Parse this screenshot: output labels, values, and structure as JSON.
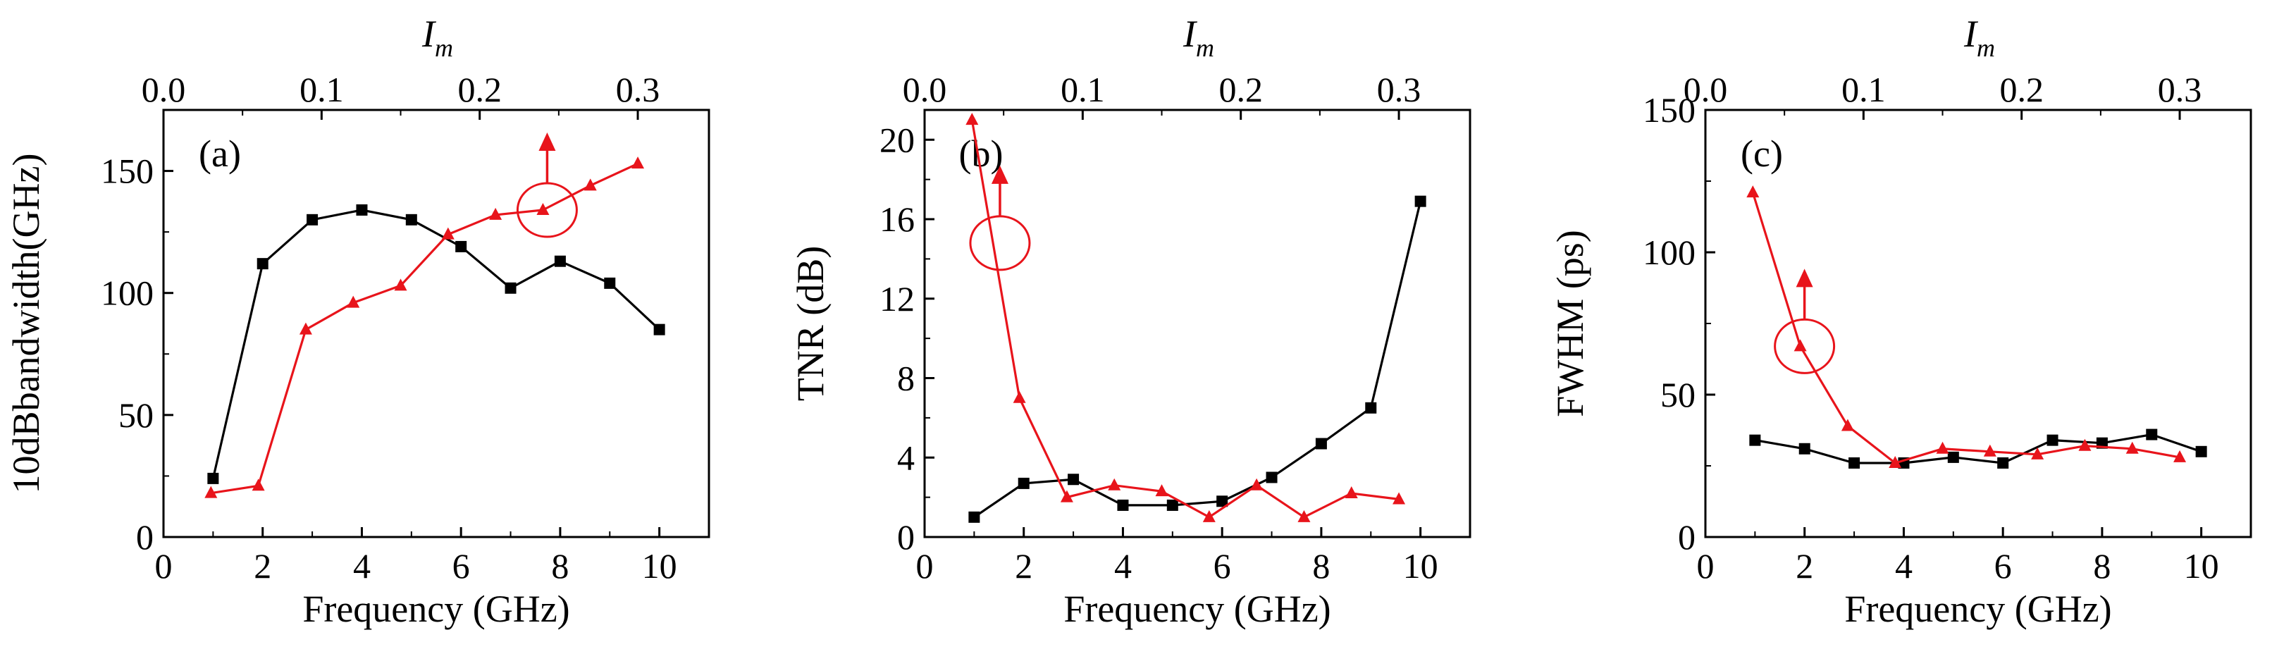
{
  "chart_data": [
    {
      "type": "line",
      "panel_label": "(a)",
      "xlabel": "Frequency (GHz)",
      "ylabel": "10dBbandwidth(GHz)",
      "top_axis_label": {
        "main": "I",
        "sub": "m"
      },
      "xlim": [
        0,
        11
      ],
      "ylim": [
        0,
        175
      ],
      "top_xlim": [
        0,
        0.345
      ],
      "x_ticks": [
        "0",
        "2",
        "4",
        "6",
        "8",
        "10"
      ],
      "y_ticks": [
        "0",
        "50",
        "100",
        "150"
      ],
      "top_ticks": [
        "0.0",
        "0.1",
        "0.2",
        "0.3"
      ],
      "series": [
        {
          "name": "frequency",
          "axis": "bottom",
          "marker": "square",
          "color": "#000000",
          "x": [
            1,
            2,
            3,
            4,
            5,
            6,
            7,
            8,
            9,
            10
          ],
          "y": [
            24,
            112,
            130,
            134,
            130,
            119,
            102,
            113,
            104,
            85
          ]
        },
        {
          "name": "Im",
          "axis": "top",
          "marker": "triangle",
          "color": "#e8141b",
          "x": [
            0.03,
            0.06,
            0.09,
            0.12,
            0.15,
            0.18,
            0.21,
            0.24,
            0.27,
            0.3
          ],
          "y": [
            18,
            21,
            85,
            96,
            103,
            124,
            132,
            134,
            144,
            153
          ]
        }
      ],
      "annotation": {
        "type": "circle-arrow",
        "points_to": "top",
        "series": "Im",
        "x": 0.24,
        "y": 134
      }
    },
    {
      "type": "line",
      "panel_label": "(b)",
      "xlabel": "Frequency (GHz)",
      "ylabel": "TNR (dB)",
      "top_axis_label": {
        "main": "I",
        "sub": "m"
      },
      "xlim": [
        0,
        11
      ],
      "ylim": [
        0,
        21.5
      ],
      "top_xlim": [
        0,
        0.345
      ],
      "x_ticks": [
        "0",
        "2",
        "4",
        "6",
        "8",
        "10"
      ],
      "y_ticks": [
        "0",
        "4",
        "8",
        "12",
        "16",
        "20"
      ],
      "top_ticks": [
        "0.0",
        "0.1",
        "0.2",
        "0.3"
      ],
      "series": [
        {
          "name": "frequency",
          "axis": "bottom",
          "marker": "square",
          "color": "#000000",
          "x": [
            1,
            2,
            3,
            4,
            5,
            6,
            7,
            8,
            9,
            10
          ],
          "y": [
            1.0,
            2.7,
            2.9,
            1.6,
            1.6,
            1.8,
            3.0,
            4.7,
            6.5,
            16.9
          ]
        },
        {
          "name": "Im",
          "axis": "top",
          "marker": "triangle",
          "color": "#e8141b",
          "x": [
            0.03,
            0.06,
            0.09,
            0.12,
            0.15,
            0.18,
            0.21,
            0.24,
            0.27,
            0.3
          ],
          "y": [
            21.0,
            7.0,
            2.0,
            2.6,
            2.3,
            1.0,
            2.6,
            1.0,
            2.2,
            1.9
          ]
        }
      ],
      "annotation": {
        "type": "circle-arrow",
        "points_to": "top",
        "series": "Im",
        "x": 0.045,
        "y": 14.8
      }
    },
    {
      "type": "line",
      "panel_label": "(c)",
      "xlabel": "Frequency (GHz)",
      "ylabel": "FWHM (ps)",
      "top_axis_label": {
        "main": "I",
        "sub": "m"
      },
      "xlim": [
        0,
        11
      ],
      "ylim": [
        0,
        150
      ],
      "top_xlim": [
        0,
        0.345
      ],
      "x_ticks": [
        "0",
        "2",
        "4",
        "6",
        "8",
        "10"
      ],
      "y_ticks": [
        "0",
        "50",
        "100",
        "150"
      ],
      "top_ticks": [
        "0.0",
        "0.1",
        "0.2",
        "0.3"
      ],
      "series": [
        {
          "name": "frequency",
          "axis": "bottom",
          "marker": "square",
          "color": "#000000",
          "x": [
            1,
            2,
            3,
            4,
            5,
            6,
            7,
            8,
            9,
            10
          ],
          "y": [
            34,
            31,
            26,
            26,
            28,
            26,
            34,
            33,
            36,
            30
          ]
        },
        {
          "name": "Im",
          "axis": "top",
          "marker": "triangle",
          "color": "#e8141b",
          "x": [
            0.03,
            0.06,
            0.09,
            0.12,
            0.15,
            0.18,
            0.21,
            0.24,
            0.27,
            0.3
          ],
          "y": [
            121,
            67,
            39,
            26,
            31,
            30,
            29,
            32,
            31,
            28
          ]
        }
      ],
      "annotation": {
        "type": "circle-arrow",
        "points_to": "top",
        "series": "Im",
        "x": 0.06,
        "y": 67
      }
    }
  ]
}
